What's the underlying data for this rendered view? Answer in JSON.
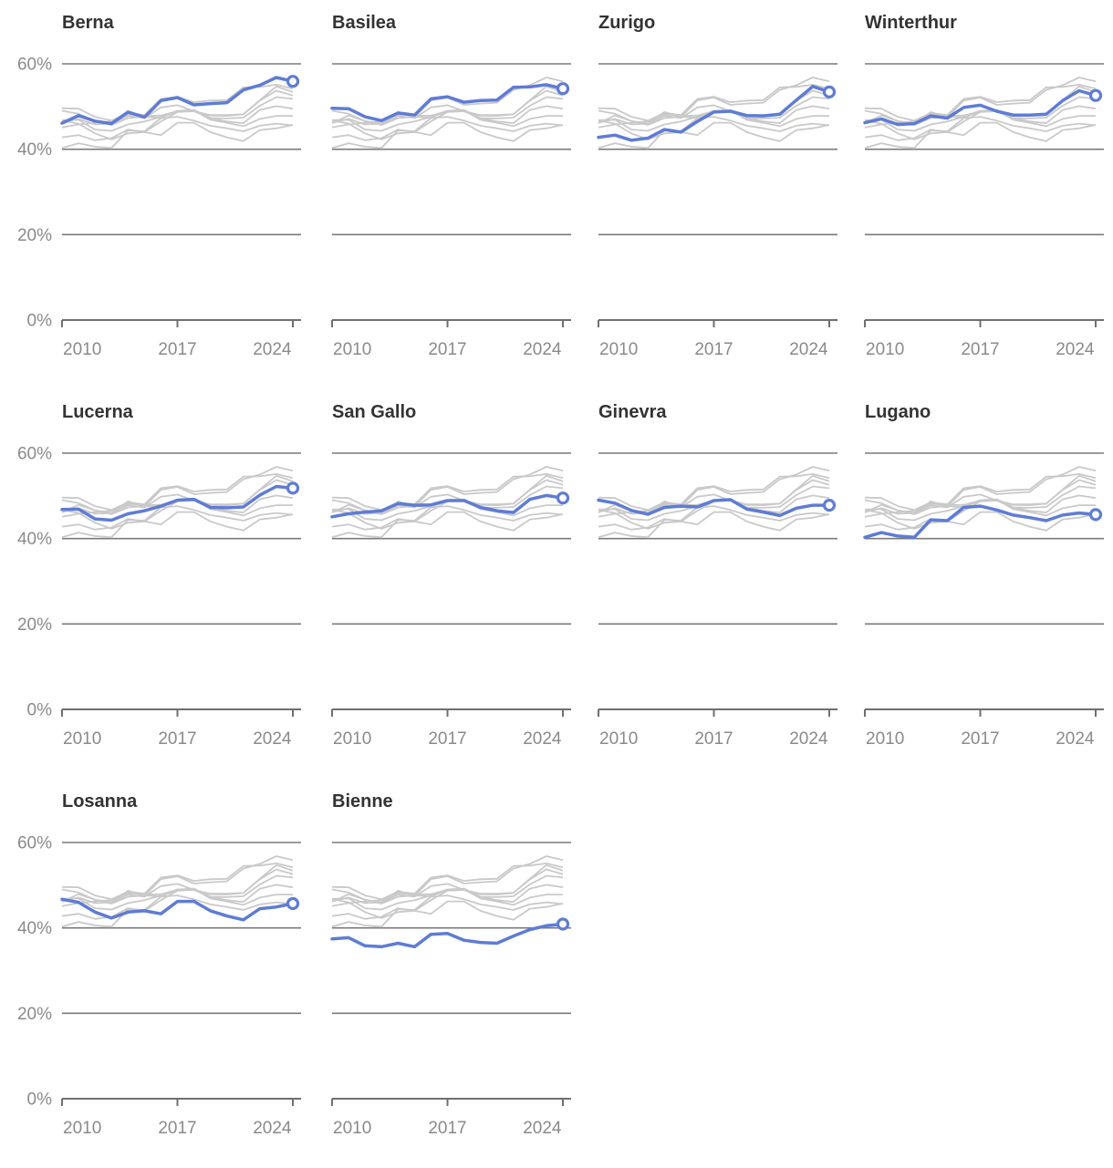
{
  "chart_data": {
    "type": "line",
    "title": "",
    "description": "Small-multiples line charts of ten Swiss cities, share in percent, one highlighted series per panel with grey comparison lines",
    "x": [
      2010,
      2011,
      2012,
      2013,
      2014,
      2015,
      2016,
      2017,
      2018,
      2019,
      2020,
      2021,
      2022,
      2023,
      2024
    ],
    "x_ticks": [
      {
        "label": "2010",
        "year": 2010
      },
      {
        "label": "2017",
        "year": 2017
      },
      {
        "label": "2024",
        "year": 2024
      }
    ],
    "y_ticks": [
      {
        "label": "60%",
        "value": 60
      },
      {
        "label": "40%",
        "value": 40
      },
      {
        "label": "20%",
        "value": 20
      },
      {
        "label": "0%",
        "value": 0
      }
    ],
    "ylim": [
      0,
      62
    ],
    "unit": "%",
    "grid": "horizontal",
    "legend": "none",
    "panels": [
      {
        "label": "Berna"
      },
      {
        "label": "Basilea"
      },
      {
        "label": "Zurigo"
      },
      {
        "label": "Winterthur"
      },
      {
        "label": "Lucerna"
      },
      {
        "label": "San Gallo"
      },
      {
        "label": "Ginevra"
      },
      {
        "label": "Lugano"
      },
      {
        "label": "Losanna"
      },
      {
        "label": "Bienne"
      }
    ],
    "background_excludes": [
      "Bienne"
    ],
    "series": [
      {
        "name": "Berna",
        "values": [
          46.1,
          47.9,
          46.6,
          46.0,
          48.7,
          47.5,
          51.4,
          52.1,
          50.4,
          50.7,
          50.9,
          53.9,
          55.0,
          56.8,
          55.9
        ]
      },
      {
        "name": "Basilea",
        "values": [
          49.6,
          49.5,
          47.6,
          46.7,
          48.5,
          48.0,
          51.8,
          52.3,
          51.0,
          51.4,
          51.5,
          54.5,
          54.6,
          55.1,
          54.2
        ]
      },
      {
        "name": "Zurigo",
        "values": [
          42.8,
          43.3,
          42.1,
          42.6,
          44.6,
          44.0,
          46.5,
          48.7,
          48.9,
          47.9,
          47.8,
          48.2,
          51.5,
          54.7,
          53.4
        ]
      },
      {
        "name": "Winterthur",
        "values": [
          46.2,
          47.1,
          45.8,
          46.0,
          47.8,
          47.3,
          49.8,
          50.3,
          48.9,
          48.0,
          48.0,
          48.2,
          51.4,
          53.7,
          52.6
        ]
      },
      {
        "name": "Lucerna",
        "values": [
          46.8,
          46.9,
          44.6,
          44.3,
          45.8,
          46.5,
          47.6,
          49.0,
          49.2,
          47.3,
          47.2,
          47.4,
          50.2,
          52.2,
          51.8
        ]
      },
      {
        "name": "San Gallo",
        "values": [
          45.1,
          45.8,
          46.2,
          46.5,
          48.2,
          47.8,
          47.9,
          48.9,
          48.9,
          47.3,
          46.5,
          46.1,
          49.2,
          50.1,
          49.5
        ]
      },
      {
        "name": "Ginevra",
        "values": [
          49.0,
          48.3,
          46.6,
          45.7,
          47.3,
          47.6,
          47.4,
          48.9,
          49.1,
          46.9,
          46.2,
          45.4,
          47.1,
          47.8,
          47.8
        ]
      },
      {
        "name": "Lugano",
        "values": [
          40.3,
          41.4,
          40.6,
          40.3,
          44.4,
          44.2,
          47.3,
          47.6,
          46.7,
          45.5,
          44.9,
          44.2,
          45.5,
          46.0,
          45.6
        ]
      },
      {
        "name": "Losanna",
        "values": [
          46.7,
          46.0,
          43.7,
          42.3,
          43.7,
          44.0,
          43.3,
          46.2,
          46.2,
          44.0,
          42.8,
          41.9,
          44.5,
          44.9,
          45.7
        ]
      },
      {
        "name": "Bienne",
        "values": [
          37.4,
          37.7,
          35.8,
          35.6,
          36.4,
          35.6,
          38.5,
          38.7,
          37.1,
          36.6,
          36.4,
          38.1,
          39.6,
          40.5,
          40.9
        ]
      }
    ],
    "colors": {
      "highlight": "#5e7cd6",
      "background": "#c9c9c9",
      "grid": "#7a7a7a",
      "axis": "#6f6f6f",
      "title": "#333333",
      "tick_label": "#8a8a8a",
      "marker_fill": "#ffffff"
    }
  }
}
